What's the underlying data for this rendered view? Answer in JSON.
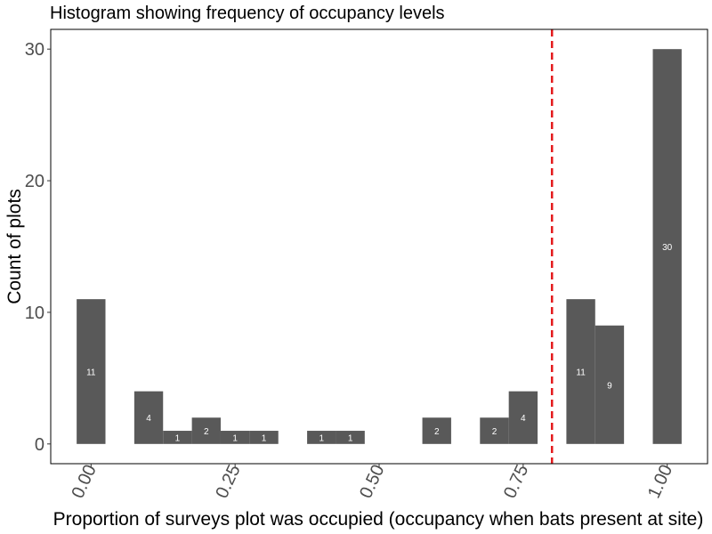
{
  "chart_data": {
    "type": "bar",
    "title": "Histogram showing frequency of occupancy levels",
    "xlabel": "Proportion of surveys plot was occupied (occupancy when bats present at site)",
    "ylabel": "Count of plots",
    "xlim": [
      -0.07,
      1.07
    ],
    "ylim": [
      -1.5,
      31.5
    ],
    "x_ticks": [
      "0.00",
      "0.25",
      "0.50",
      "0.75",
      "1.00"
    ],
    "x_tick_values": [
      0,
      0.25,
      0.5,
      0.75,
      1.0
    ],
    "y_ticks": [
      "0",
      "10",
      "20",
      "30"
    ],
    "y_tick_values": [
      0,
      10,
      20,
      30
    ],
    "bin_width": 0.05,
    "bins": [
      {
        "x": 0.0,
        "count": 11,
        "label": "11"
      },
      {
        "x": 0.1,
        "count": 4,
        "label": "4"
      },
      {
        "x": 0.15,
        "count": 1,
        "label": "1"
      },
      {
        "x": 0.2,
        "count": 2,
        "label": "2"
      },
      {
        "x": 0.25,
        "count": 1,
        "label": "1"
      },
      {
        "x": 0.3,
        "count": 1,
        "label": "1"
      },
      {
        "x": 0.4,
        "count": 1,
        "label": "1"
      },
      {
        "x": 0.45,
        "count": 1,
        "label": "1"
      },
      {
        "x": 0.6,
        "count": 2,
        "label": "2"
      },
      {
        "x": 0.7,
        "count": 2,
        "label": "2"
      },
      {
        "x": 0.75,
        "count": 4,
        "label": "4"
      },
      {
        "x": 0.85,
        "count": 11,
        "label": "11"
      },
      {
        "x": 0.9,
        "count": 9,
        "label": "9"
      },
      {
        "x": 1.0,
        "count": 30,
        "label": "30"
      }
    ],
    "reference_line": {
      "x": 0.8,
      "style": "dashed",
      "color": "#e31a1c"
    },
    "bar_color": "#595959",
    "grid": false,
    "legend": "none"
  }
}
